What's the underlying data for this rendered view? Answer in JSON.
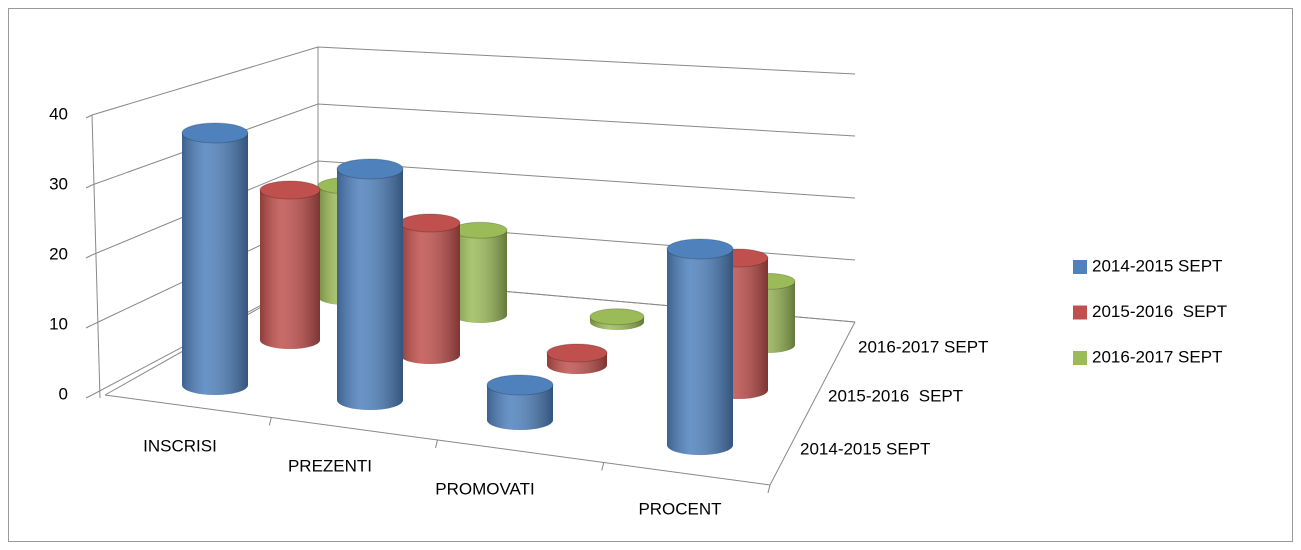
{
  "chart_data": {
    "type": "bar3d",
    "categories": [
      "INSCRISI",
      "PREZENTI",
      "PROMOVATI",
      "PROCENT"
    ],
    "series": [
      {
        "name": "2014-2015 SEPT",
        "color": "#4f81bd",
        "values": [
          36,
          33,
          5,
          28
        ]
      },
      {
        "name": "2015-2016  SEPT",
        "color": "#c0504d",
        "values": [
          25,
          22,
          2,
          22
        ]
      },
      {
        "name": "2016-2017 SEPT",
        "color": "#9bbb59",
        "values": [
          21,
          16,
          1,
          12
        ]
      }
    ],
    "ylim": [
      0,
      40
    ],
    "yticks": [
      0,
      10,
      20,
      30,
      40
    ],
    "grid": true,
    "legend": "right"
  }
}
